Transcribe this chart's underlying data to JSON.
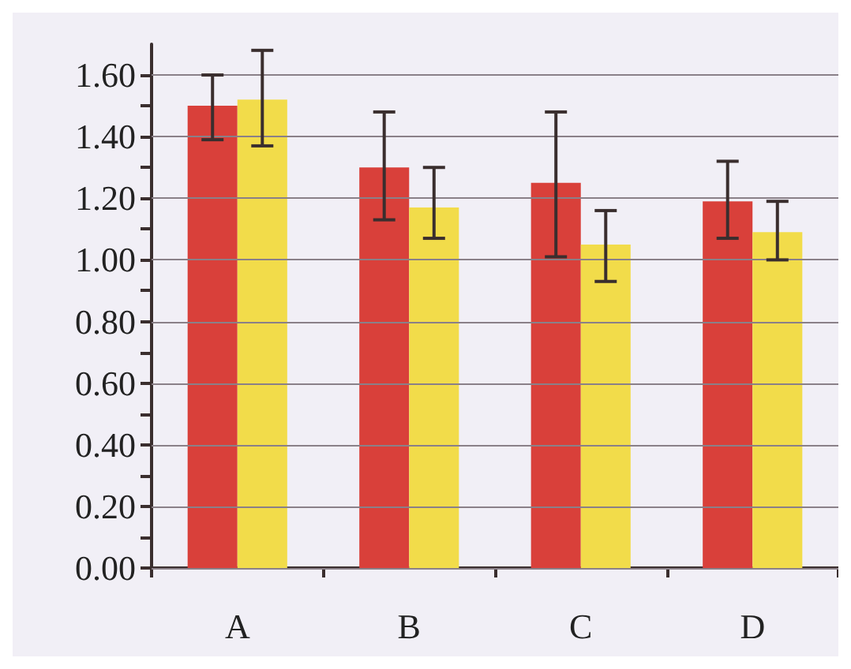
{
  "chart_data": {
    "type": "bar",
    "categories": [
      "A",
      "B",
      "C",
      "D"
    ],
    "series": [
      {
        "color": "#d9403a",
        "values": [
          1.5,
          1.3,
          1.25,
          1.19
        ],
        "errors": [
          [
            1.39,
            1.6
          ],
          [
            1.13,
            1.48
          ],
          [
            1.01,
            1.48
          ],
          [
            1.07,
            1.32
          ]
        ]
      },
      {
        "color": "#f2dc4a",
        "values": [
          1.52,
          1.17,
          1.05,
          1.09
        ],
        "errors": [
          [
            1.37,
            1.68
          ],
          [
            1.07,
            1.3
          ],
          [
            0.93,
            1.16
          ],
          [
            1.0,
            1.19
          ]
        ]
      }
    ],
    "ylim": [
      0,
      1.7
    ],
    "yticks": [
      {
        "value": 0,
        "label": "0.00"
      },
      {
        "value": 0.1,
        "label": null
      },
      {
        "value": 0.2,
        "label": "0.20"
      },
      {
        "value": 0.3,
        "label": null
      },
      {
        "value": 0.4,
        "label": "0.40"
      },
      {
        "value": 0.5,
        "label": null
      },
      {
        "value": 0.6,
        "label": "0.60"
      },
      {
        "value": 0.7,
        "label": null
      },
      {
        "value": 0.8,
        "label": "0.80"
      },
      {
        "value": 0.9,
        "label": null
      },
      {
        "value": 1.0,
        "label": "1.00"
      },
      {
        "value": 1.1,
        "label": null
      },
      {
        "value": 1.2,
        "label": "1.20"
      },
      {
        "value": 1.3,
        "label": null
      },
      {
        "value": 1.4,
        "label": "1.40"
      },
      {
        "value": 1.5,
        "label": null
      },
      {
        "value": 1.6,
        "label": "1.60"
      }
    ],
    "grid": "y"
  }
}
